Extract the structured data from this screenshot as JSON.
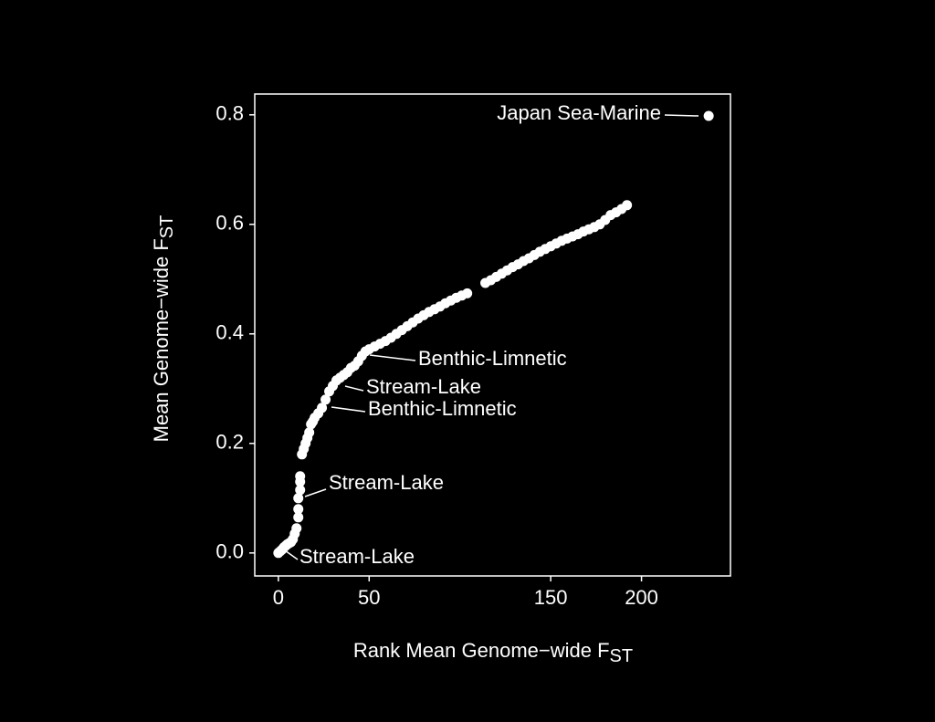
{
  "chart_data": {
    "type": "scatter",
    "xlabel": {
      "text": "Rank Mean Genome−wide  F",
      "subscript": "ST"
    },
    "ylabel": {
      "text": "Mean Genome−wide F",
      "subscript": "ST"
    },
    "x": [
      0,
      1,
      2,
      3,
      4,
      5,
      6,
      7,
      8,
      9,
      10,
      11,
      11,
      11,
      12,
      12,
      12,
      13,
      14,
      15,
      16,
      17,
      18,
      19,
      20,
      22,
      24,
      26,
      28,
      30,
      32,
      34,
      36,
      38,
      40,
      42,
      44,
      46,
      48,
      50,
      53,
      56,
      59,
      62,
      65,
      68,
      71,
      74,
      77,
      80,
      83,
      86,
      89,
      92,
      95,
      98,
      101,
      104,
      114,
      117,
      120,
      123,
      126,
      129,
      132,
      135,
      138,
      141,
      144,
      147,
      150,
      153,
      156,
      159,
      162,
      165,
      168,
      171,
      174,
      177,
      180,
      183,
      186,
      189,
      192,
      237
    ],
    "values": [
      0.0,
      0.003,
      0.006,
      0.01,
      0.013,
      0.016,
      0.018,
      0.02,
      0.025,
      0.035,
      0.045,
      0.065,
      0.08,
      0.1,
      0.115,
      0.13,
      0.14,
      0.18,
      0.19,
      0.2,
      0.21,
      0.22,
      0.235,
      0.24,
      0.247,
      0.255,
      0.265,
      0.28,
      0.295,
      0.305,
      0.315,
      0.32,
      0.325,
      0.33,
      0.338,
      0.342,
      0.35,
      0.36,
      0.368,
      0.372,
      0.377,
      0.382,
      0.387,
      0.393,
      0.4,
      0.407,
      0.414,
      0.421,
      0.428,
      0.434,
      0.44,
      0.445,
      0.45,
      0.456,
      0.461,
      0.466,
      0.47,
      0.474,
      0.493,
      0.498,
      0.504,
      0.51,
      0.516,
      0.522,
      0.527,
      0.533,
      0.538,
      0.544,
      0.55,
      0.555,
      0.56,
      0.565,
      0.57,
      0.574,
      0.578,
      0.582,
      0.587,
      0.591,
      0.595,
      0.6,
      0.608,
      0.617,
      0.622,
      0.628,
      0.635,
      0.798
    ],
    "color": "#ffffff",
    "xlim": [
      -13,
      249
    ],
    "xticks": [
      0,
      50,
      150,
      200
    ],
    "ylim": [
      -0.042,
      0.838
    ],
    "yticks": [
      {
        "value": 0,
        "label": "0.0"
      },
      0.2,
      0.4,
      0.6,
      0.8
    ],
    "annotations": [
      "Japan Sea-Marine",
      "Benthic-Limnetic",
      "Stream-Lake",
      "Benthic-Limnetic",
      "Stream-Lake",
      "Stream-Lake"
    ]
  }
}
